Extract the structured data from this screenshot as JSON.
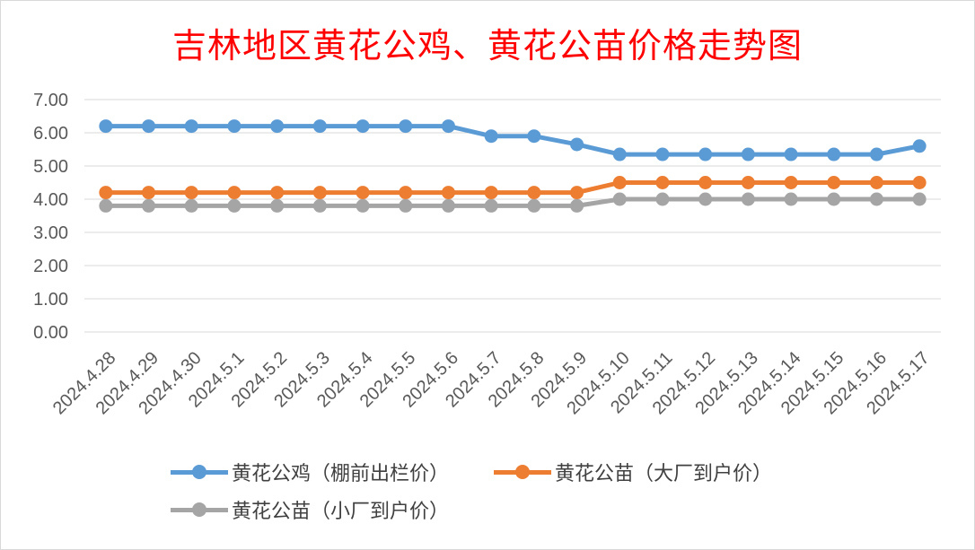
{
  "chart_data": {
    "type": "line",
    "title": "吉林地区黄花公鸡、黄花公苗价格走势图",
    "categories": [
      "2024.4.28",
      "2024.4.29",
      "2024.4.30",
      "2024.5.1",
      "2024.5.2",
      "2024.5.3",
      "2024.5.4",
      "2024.5.5",
      "2024.5.6",
      "2024.5.7",
      "2024.5.8",
      "2024.5.9",
      "2024.5.10",
      "2024.5.11",
      "2024.5.12",
      "2024.5.13",
      "2024.5.14",
      "2024.5.15",
      "2024.5.16",
      "2024.5.17"
    ],
    "ylim": [
      0,
      7
    ],
    "yticks": [
      "0.00",
      "1.00",
      "2.00",
      "3.00",
      "4.00",
      "5.00",
      "6.00",
      "7.00"
    ],
    "grid": true,
    "legend_position": "bottom",
    "series": [
      {
        "name": "黄花公鸡（棚前出栏价）",
        "color": "#5b9bd5",
        "values": [
          6.2,
          6.2,
          6.2,
          6.2,
          6.2,
          6.2,
          6.2,
          6.2,
          6.2,
          5.9,
          5.9,
          5.65,
          5.35,
          5.35,
          5.35,
          5.35,
          5.35,
          5.35,
          5.35,
          5.6
        ]
      },
      {
        "name": "黄花公苗（大厂到户价）",
        "color": "#ed7d31",
        "values": [
          4.2,
          4.2,
          4.2,
          4.2,
          4.2,
          4.2,
          4.2,
          4.2,
          4.2,
          4.2,
          4.2,
          4.2,
          4.5,
          4.5,
          4.5,
          4.5,
          4.5,
          4.5,
          4.5,
          4.5
        ]
      },
      {
        "name": "黄花公苗（小厂到户价）",
        "color": "#a5a5a5",
        "values": [
          3.8,
          3.8,
          3.8,
          3.8,
          3.8,
          3.8,
          3.8,
          3.8,
          3.8,
          3.8,
          3.8,
          3.8,
          4.0,
          4.0,
          4.0,
          4.0,
          4.0,
          4.0,
          4.0,
          4.0
        ]
      }
    ]
  },
  "colors": {
    "title": "#ff0000",
    "grid": "#d9d9d9",
    "axis_text": "#595959"
  }
}
